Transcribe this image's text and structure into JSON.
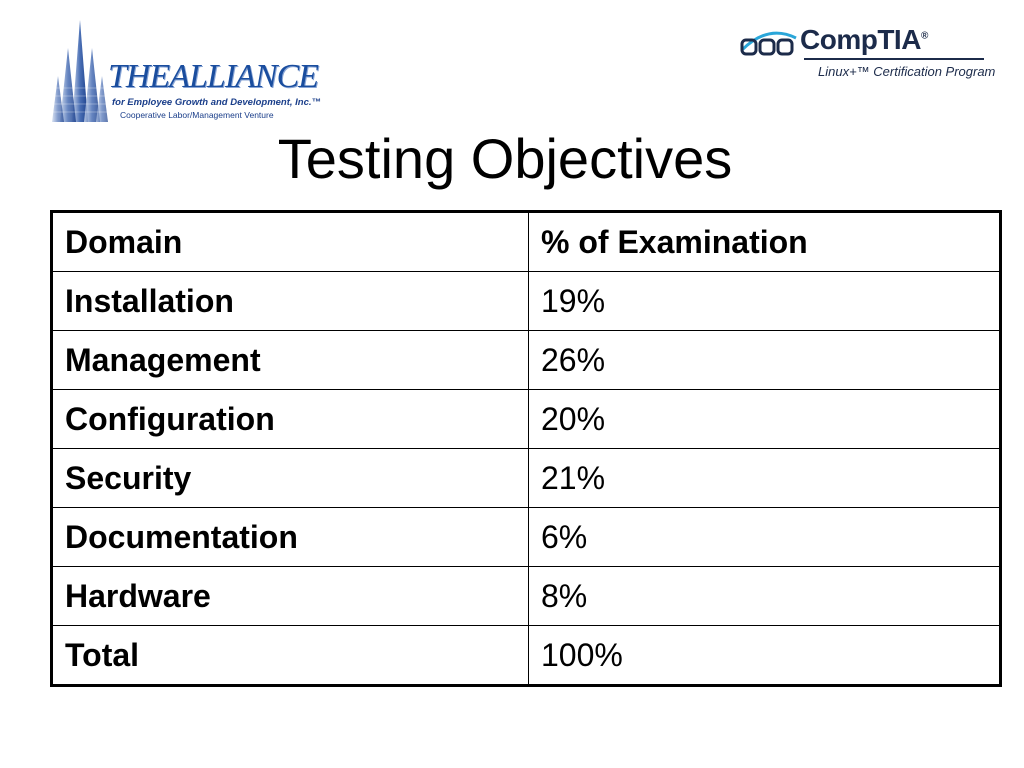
{
  "logos": {
    "alliance": {
      "name": "THEALLIANCE",
      "tagline": "for Employee Growth and Development, Inc.",
      "trademark": "™",
      "subtagline": "Cooperative Labor/Management Venture",
      "icon": "building-spires-icon"
    },
    "comptia": {
      "name": "CompTIA",
      "registered": "®",
      "program": "Linux+™ Certification Program",
      "icon": "comptia-rings-icon"
    }
  },
  "title": "Testing Objectives",
  "table": {
    "headers": [
      "Domain",
      "% of Examination"
    ],
    "rows": [
      [
        "Installation",
        "19%"
      ],
      [
        "Management",
        "26%"
      ],
      [
        "Configuration",
        "20%"
      ],
      [
        "Security",
        "21%"
      ],
      [
        "Documentation",
        "6%"
      ],
      [
        "Hardware",
        "8%"
      ],
      [
        "Total",
        "100%"
      ]
    ]
  },
  "colors": {
    "alliance_blue": "#1a4d9e",
    "comptia_navy": "#1c2b4a",
    "text": "#000000",
    "background": "#ffffff"
  }
}
